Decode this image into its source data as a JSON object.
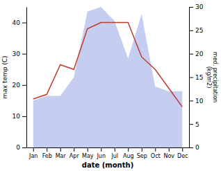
{
  "chart_data": {
    "type": "line",
    "xlabel": "date (month)",
    "ylabel": "max temp (C)",
    "y2label": "med. precipitation\n(kg/m2)",
    "categories": [
      "Jan",
      "Feb",
      "Mar",
      "Apr",
      "May",
      "Jun",
      "Jul",
      "Aug",
      "Sep",
      "Oct",
      "Nov",
      "Dec"
    ],
    "series": [
      {
        "type": "area",
        "axis": "y2",
        "color": "#c5cef0",
        "values": [
          10.0,
          11.0,
          11.0,
          15.0,
          29.0,
          30.0,
          27.0,
          19.0,
          28.5,
          13.0,
          12.0,
          12.0
        ]
      },
      {
        "type": "line",
        "color": "#c0392b",
        "values": [
          15.5,
          17.0,
          26.5,
          25.0,
          38.0,
          40.0,
          40.0,
          40.0,
          29.0,
          25.0,
          19.0,
          13.0
        ]
      }
    ],
    "ylim": [
      0,
      45
    ],
    "yticks": [
      0,
      10,
      20,
      30,
      40
    ],
    "y2lim": [
      0,
      30
    ],
    "y2ticks": [
      0,
      5,
      10,
      15,
      20,
      25,
      30
    ],
    "grid": false
  }
}
